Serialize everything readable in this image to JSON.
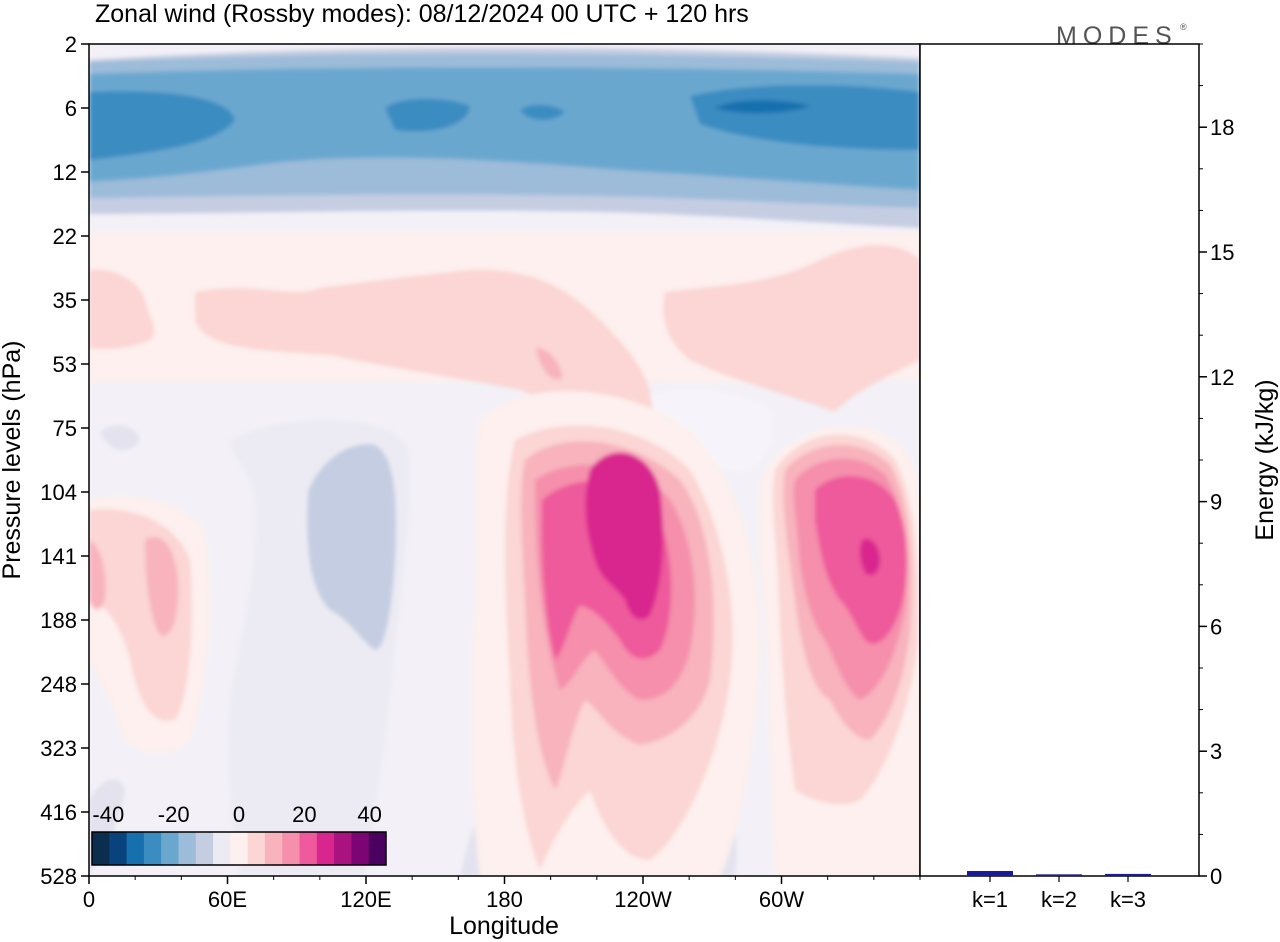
{
  "title": "Zonal wind (Rossby modes):  08/12/2024  00 UTC  + 120 hrs",
  "logo": "MODES",
  "chart_data": [
    {
      "type": "heatmap",
      "variable": "Zonal wind",
      "xlabel": "Longitude",
      "ylabel": "Pressure levels (hPa)",
      "x_ticks": [
        "0",
        "60E",
        "120E",
        "180",
        "120W",
        "60W"
      ],
      "x_tick_degrees": [
        0,
        60,
        120,
        180,
        240,
        300
      ],
      "xlim": [
        0,
        360
      ],
      "y_ticks": [
        "2",
        "6",
        "12",
        "22",
        "35",
        "53",
        "75",
        "104",
        "141",
        "188",
        "248",
        "323",
        "416",
        "528"
      ],
      "y_scale": "model levels, pressure increasing downward",
      "colorbar": {
        "tick_labels": [
          "-40",
          "-20",
          "0",
          "20",
          "40"
        ],
        "tick_values": [
          -40,
          -20,
          0,
          20,
          40
        ],
        "range": [
          -45,
          45
        ],
        "interval": 5,
        "colors": [
          "#0b2e4f",
          "#08437e",
          "#1670ae",
          "#3a8cc1",
          "#6aa7cf",
          "#9cbcd9",
          "#c5cde2",
          "#ecebf3",
          "#fdf0ee",
          "#fbd6d4",
          "#f8b3bd",
          "#f58fab",
          "#ee5a9b",
          "#d9268e",
          "#aa1280",
          "#7d0573",
          "#4b0160"
        ]
      },
      "features": [
        {
          "kind": "easterly jet",
          "lon_range": [
            0,
            360
          ],
          "level_range": [
            4,
            12
          ],
          "peak": -30
        },
        {
          "kind": "westerly jet core",
          "lon": 245,
          "level": 141,
          "peak": 35
        },
        {
          "kind": "westerly jet core",
          "lon": 320,
          "level": 141,
          "peak": 38
        },
        {
          "kind": "westerly maximum",
          "lon": 25,
          "level": 141,
          "peak": 12
        },
        {
          "kind": "easterly region",
          "lon": 110,
          "level": 141,
          "peak": -8
        }
      ]
    },
    {
      "type": "bar",
      "ylabel": "Energy (kJ/kg)",
      "categories": [
        "k=1",
        "k=2",
        "k=3"
      ],
      "values": [
        0.12,
        0.04,
        0.05
      ],
      "ylim": [
        0,
        20
      ],
      "y_ticks": [
        0,
        3,
        6,
        9,
        12,
        15,
        18
      ],
      "bar_color": "#1a1a9e"
    }
  ]
}
